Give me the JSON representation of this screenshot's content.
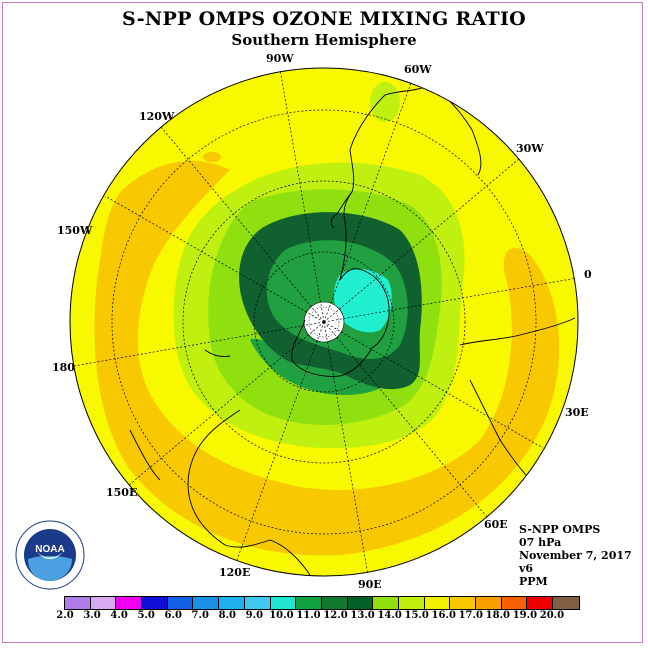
{
  "title": "S-NPP OMPS OZONE MIXING RATIO",
  "subtitle": "Southern Hemisphere",
  "longitude_labels": [
    {
      "key": "lon-90w",
      "text": "90W"
    },
    {
      "key": "lon-60w",
      "text": "60W"
    },
    {
      "key": "lon-120w",
      "text": "120W"
    },
    {
      "key": "lon-30w",
      "text": "30W"
    },
    {
      "key": "lon-150w",
      "text": "150W"
    },
    {
      "key": "lon-0",
      "text": "0"
    },
    {
      "key": "lon-180",
      "text": "180"
    },
    {
      "key": "lon-30e",
      "text": "30E"
    },
    {
      "key": "lon-150e",
      "text": "150E"
    },
    {
      "key": "lon-60e",
      "text": "60E"
    },
    {
      "key": "lon-120e",
      "text": "120E"
    },
    {
      "key": "lon-90e",
      "text": "90E"
    }
  ],
  "metadata": {
    "instrument": "S-NPP OMPS",
    "pressure_level": "07 hPa",
    "date": "November 7, 2017",
    "version": "v6",
    "units": "PPM"
  },
  "logo": {
    "text": "NOAA",
    "icon": "noaa-logo-icon"
  },
  "colorbar": {
    "ticks": [
      "2.0",
      "3.0",
      "4.0",
      "5.0",
      "6.0",
      "7.0",
      "8.0",
      "9.0",
      "10.0",
      "11.0",
      "12.0",
      "13.0",
      "14.0",
      "15.0",
      "16.0",
      "17.0",
      "18.0",
      "19.0",
      "20.0"
    ],
    "colors": [
      "#b07ce8",
      "#d8a8f0",
      "#f000f0",
      "#1010d8",
      "#1060e8",
      "#1890e8",
      "#20b0f0",
      "#40c8f0",
      "#20e8d0",
      "#10a040",
      "#107830",
      "#006028",
      "#90e010",
      "#c0f010",
      "#f0f000",
      "#f8c800",
      "#f8a000",
      "#f86000",
      "#f00000",
      "#806040"
    ]
  },
  "map": {
    "fill_colors": {
      "background": "#f8f800",
      "orange_band": "#f8c800",
      "light_green": "#c0f010",
      "green": "#90e010",
      "mid_green": "#20a040",
      "dark_green": "#106030",
      "cyan": "#20f0d0",
      "pole": "#ffffff"
    }
  }
}
